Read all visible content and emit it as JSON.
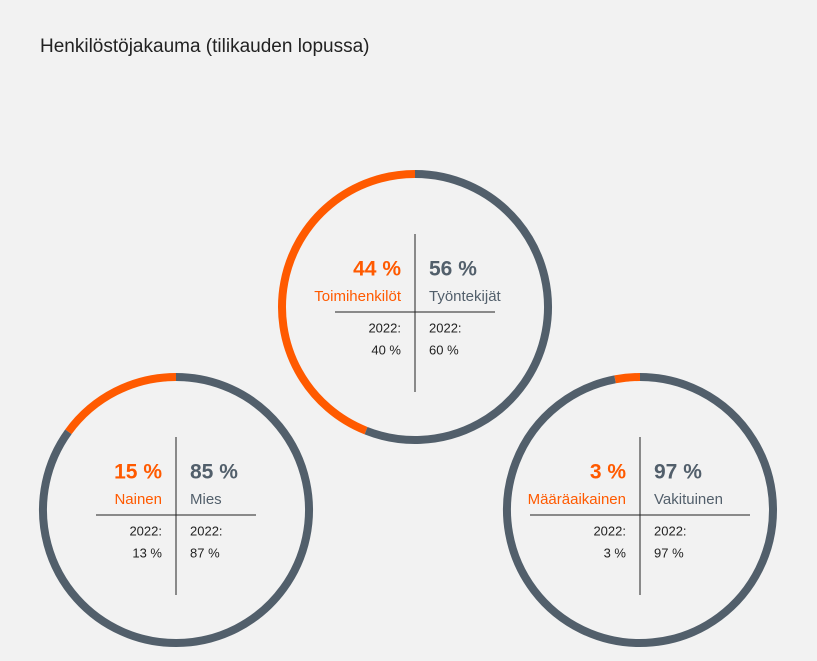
{
  "title": "Henkilöstöjakauma (tilikauden lopussa)",
  "chart_data": [
    {
      "type": "donut",
      "categories": [
        "Toimihenkilöt",
        "Työntekijät"
      ],
      "values": [
        44,
        56
      ],
      "value_labels": [
        "44 %",
        "56 %"
      ],
      "colors": [
        "#ff5a00",
        "#525f6b"
      ],
      "comparison": {
        "label": "2022:",
        "values": [
          40,
          60
        ],
        "value_labels": [
          "40 %",
          "60 %"
        ]
      }
    },
    {
      "type": "donut",
      "categories": [
        "Nainen",
        "Mies"
      ],
      "values": [
        15,
        85
      ],
      "value_labels": [
        "15 %",
        "85 %"
      ],
      "colors": [
        "#ff5a00",
        "#525f6b"
      ],
      "comparison": {
        "label": "2022:",
        "values": [
          13,
          87
        ],
        "value_labels": [
          "13 %",
          "87 %"
        ]
      }
    },
    {
      "type": "donut",
      "categories": [
        "Määräaikainen",
        "Vakituinen"
      ],
      "values": [
        3,
        97
      ],
      "value_labels": [
        "3 %",
        "97 %"
      ],
      "colors": [
        "#ff5a00",
        "#525f6b"
      ],
      "comparison": {
        "label": "2022:",
        "values": [
          3,
          97
        ],
        "value_labels": [
          "3 %",
          "97 %"
        ]
      }
    }
  ]
}
